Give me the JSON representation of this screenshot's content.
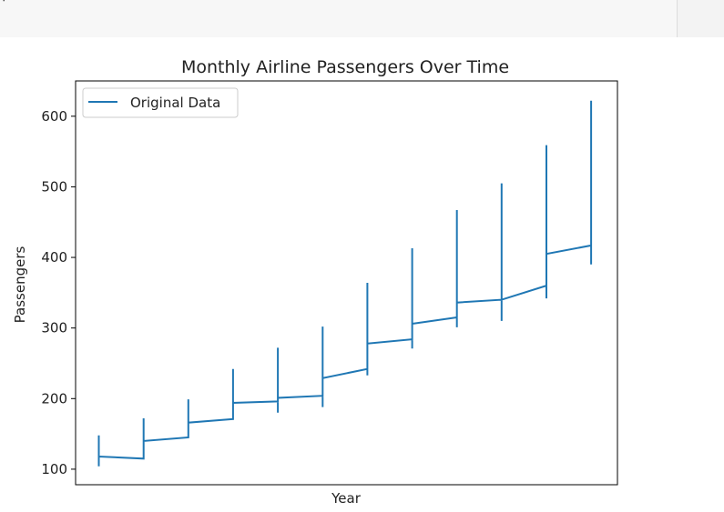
{
  "code_cell": {
    "text_prefix": "|",
    "text_parens": "()"
  },
  "chart_data": {
    "type": "line",
    "title": "Monthly Airline Passengers Over Time",
    "xlabel": "Year",
    "ylabel": "Passengers",
    "xticks_visible": false,
    "ylim": [
      78,
      650
    ],
    "yticks": [
      100,
      200,
      300,
      400,
      500,
      600
    ],
    "grid": false,
    "legend": {
      "placement": "top-left",
      "entries": [
        "Original Data"
      ]
    },
    "series": [
      {
        "name": "Original Data",
        "color": "#1f77b4",
        "points": [
          [
            0,
            112
          ],
          [
            0,
            148
          ],
          [
            0,
            104
          ],
          [
            0,
            118
          ],
          [
            1,
            115
          ],
          [
            1,
            172
          ],
          [
            1,
            114
          ],
          [
            1,
            140
          ],
          [
            2,
            145
          ],
          [
            2,
            199
          ],
          [
            2,
            145
          ],
          [
            2,
            166
          ],
          [
            3,
            171
          ],
          [
            3,
            242
          ],
          [
            3,
            172
          ],
          [
            3,
            194
          ],
          [
            4,
            196
          ],
          [
            4,
            272
          ],
          [
            4,
            180
          ],
          [
            4,
            201
          ],
          [
            5,
            204
          ],
          [
            5,
            302
          ],
          [
            5,
            188
          ],
          [
            5,
            229
          ],
          [
            6,
            242
          ],
          [
            6,
            364
          ],
          [
            6,
            233
          ],
          [
            6,
            278
          ],
          [
            7,
            284
          ],
          [
            7,
            413
          ],
          [
            7,
            271
          ],
          [
            7,
            306
          ],
          [
            8,
            315
          ],
          [
            8,
            467
          ],
          [
            8,
            301
          ],
          [
            8,
            336
          ],
          [
            9,
            340
          ],
          [
            9,
            505
          ],
          [
            9,
            310
          ],
          [
            9,
            340
          ],
          [
            10,
            360
          ],
          [
            10,
            559
          ],
          [
            10,
            342
          ],
          [
            10,
            405
          ],
          [
            11,
            417
          ],
          [
            11,
            622
          ],
          [
            11,
            390
          ]
        ]
      }
    ]
  }
}
